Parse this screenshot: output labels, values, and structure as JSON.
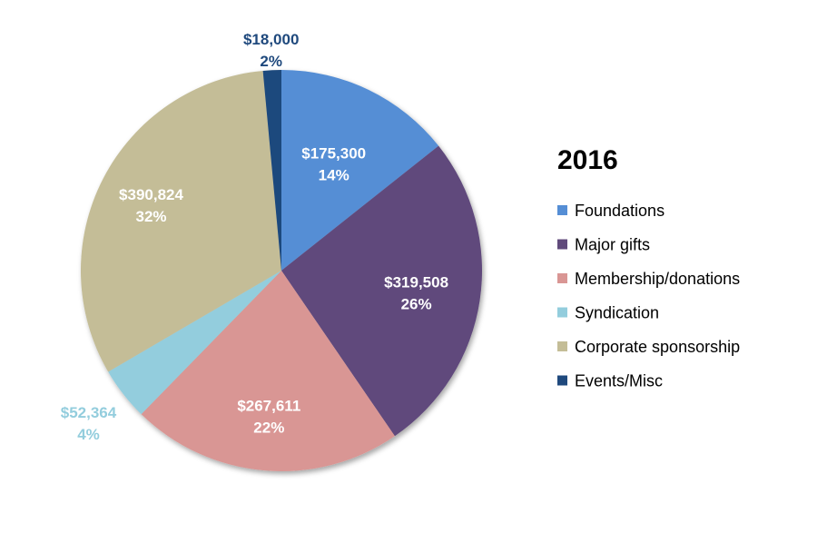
{
  "chart_data": {
    "type": "pie",
    "title": "2016",
    "legend_position": "right",
    "slices": [
      {
        "name": "Foundations",
        "value": 175300,
        "value_label": "$175,300",
        "percent_label": "14%",
        "color": "#558ED5",
        "label_color": "#ffffff"
      },
      {
        "name": "Major gifts",
        "value": 319508,
        "value_label": "$319,508",
        "percent_label": "26%",
        "color": "#604A7B",
        "label_color": "#ffffff"
      },
      {
        "name": "Membership/donations",
        "value": 267611,
        "value_label": "$267,611",
        "percent_label": "22%",
        "color": "#D99694",
        "label_color": "#ffffff"
      },
      {
        "name": "Syndication",
        "value": 52364,
        "value_label": "$52,364",
        "percent_label": "4%",
        "color": "#93CDDD",
        "label_color": "#93CDDD"
      },
      {
        "name": "Corporate sponsorship",
        "value": 390824,
        "value_label": "$390,824",
        "percent_label": "32%",
        "color": "#C4BD97",
        "label_color": "#ffffff"
      },
      {
        "name": "Events/Misc",
        "value": 18000,
        "value_label": "$18,000",
        "percent_label": "2%",
        "color": "#1F497D",
        "label_color": "#1F497D"
      }
    ]
  }
}
